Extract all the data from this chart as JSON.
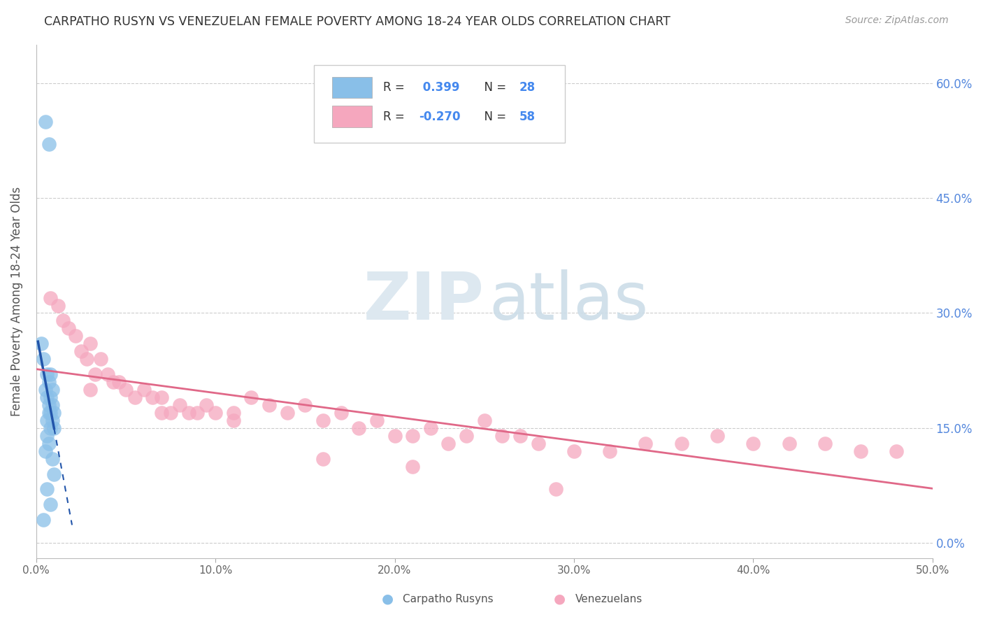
{
  "title": "CARPATHO RUSYN VS VENEZUELAN FEMALE POVERTY AMONG 18-24 YEAR OLDS CORRELATION CHART",
  "source": "Source: ZipAtlas.com",
  "ylabel": "Female Poverty Among 18-24 Year Olds",
  "xlim": [
    0.0,
    0.5
  ],
  "ylim": [
    -0.02,
    0.65
  ],
  "yticks": [
    0.0,
    0.15,
    0.3,
    0.45,
    0.6
  ],
  "xticks": [
    0.0,
    0.1,
    0.2,
    0.3,
    0.4,
    0.5
  ],
  "xtick_labels": [
    "0.0%",
    "10.0%",
    "20.0%",
    "30.0%",
    "40.0%",
    "50.0%"
  ],
  "ytick_labels_right": [
    "0.0%",
    "15.0%",
    "30.0%",
    "45.0%",
    "60.0%"
  ],
  "blue_color": "#89bfe8",
  "pink_color": "#f5a7be",
  "blue_line_color": "#2255aa",
  "pink_line_color": "#e06888",
  "grid_color": "#cccccc",
  "background_color": "#ffffff",
  "blue_scatter_x": [
    0.005,
    0.007,
    0.003,
    0.004,
    0.008,
    0.006,
    0.007,
    0.009,
    0.005,
    0.006,
    0.008,
    0.007,
    0.009,
    0.01,
    0.008,
    0.007,
    0.006,
    0.009,
    0.01,
    0.008,
    0.006,
    0.007,
    0.005,
    0.009,
    0.01,
    0.006,
    0.008,
    0.004
  ],
  "blue_scatter_y": [
    0.55,
    0.52,
    0.26,
    0.24,
    0.22,
    0.22,
    0.21,
    0.2,
    0.2,
    0.19,
    0.19,
    0.18,
    0.18,
    0.17,
    0.17,
    0.17,
    0.16,
    0.16,
    0.15,
    0.15,
    0.14,
    0.13,
    0.12,
    0.11,
    0.09,
    0.07,
    0.05,
    0.03
  ],
  "pink_scatter_x": [
    0.008,
    0.012,
    0.015,
    0.018,
    0.022,
    0.025,
    0.028,
    0.03,
    0.033,
    0.036,
    0.04,
    0.043,
    0.046,
    0.05,
    0.055,
    0.06,
    0.065,
    0.07,
    0.075,
    0.08,
    0.085,
    0.09,
    0.095,
    0.1,
    0.11,
    0.12,
    0.13,
    0.14,
    0.15,
    0.16,
    0.17,
    0.18,
    0.19,
    0.2,
    0.21,
    0.22,
    0.23,
    0.24,
    0.25,
    0.26,
    0.27,
    0.28,
    0.3,
    0.32,
    0.34,
    0.36,
    0.38,
    0.4,
    0.42,
    0.44,
    0.46,
    0.48,
    0.03,
    0.07,
    0.11,
    0.16,
    0.21,
    0.29
  ],
  "pink_scatter_y": [
    0.32,
    0.31,
    0.29,
    0.28,
    0.27,
    0.25,
    0.24,
    0.26,
    0.22,
    0.24,
    0.22,
    0.21,
    0.21,
    0.2,
    0.19,
    0.2,
    0.19,
    0.19,
    0.17,
    0.18,
    0.17,
    0.17,
    0.18,
    0.17,
    0.17,
    0.19,
    0.18,
    0.17,
    0.18,
    0.16,
    0.17,
    0.15,
    0.16,
    0.14,
    0.14,
    0.15,
    0.13,
    0.14,
    0.16,
    0.14,
    0.14,
    0.13,
    0.12,
    0.12,
    0.13,
    0.13,
    0.14,
    0.13,
    0.13,
    0.13,
    0.12,
    0.12,
    0.2,
    0.17,
    0.16,
    0.11,
    0.1,
    0.07
  ]
}
